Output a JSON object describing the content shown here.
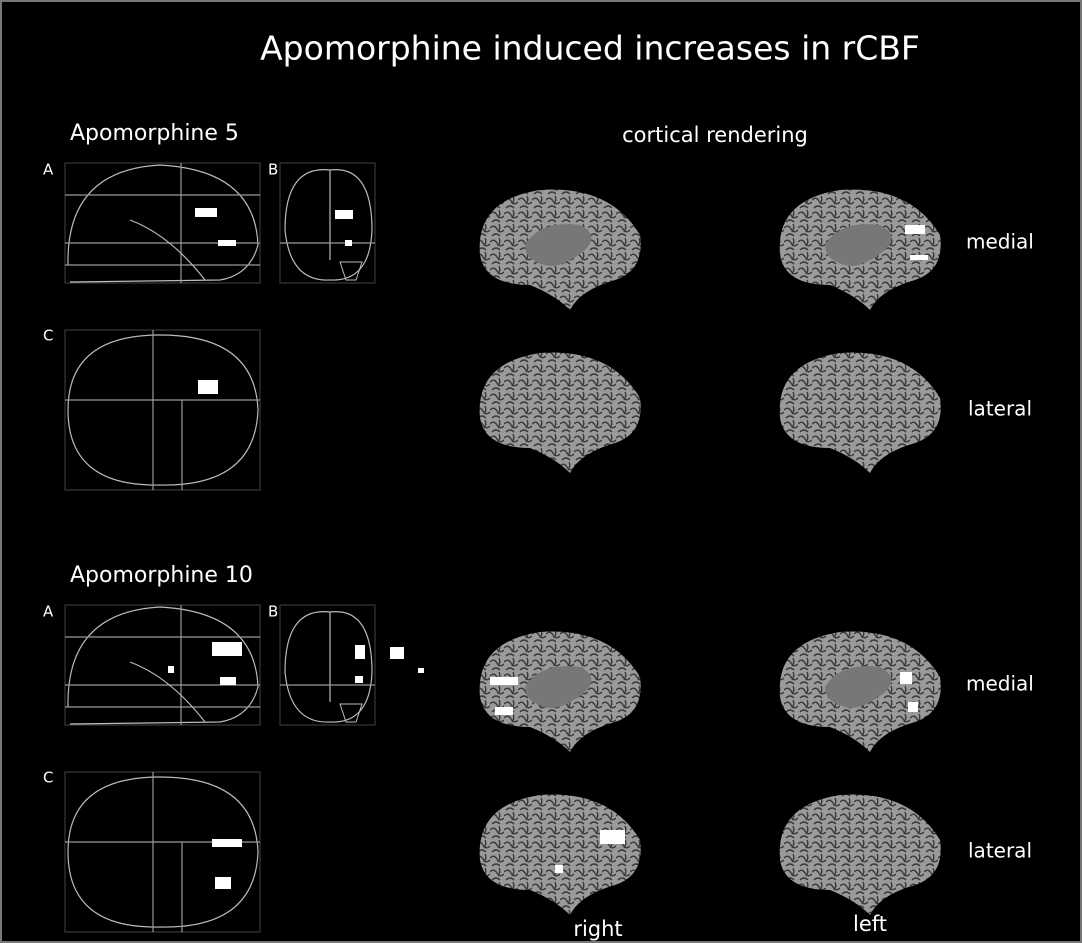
{
  "title": "Apomorphine induced increases in rCBF",
  "column_header": "cortical rendering",
  "sections": [
    {
      "label": "Apomorphine 5",
      "panels": [
        "A",
        "B",
        "C"
      ],
      "rows": [
        "medial",
        "lateral"
      ]
    },
    {
      "label": "Apomorphine 10",
      "panels": [
        "A",
        "B",
        "C"
      ],
      "rows": [
        "medial",
        "lateral"
      ]
    }
  ],
  "hemispheres": [
    "right",
    "left"
  ]
}
